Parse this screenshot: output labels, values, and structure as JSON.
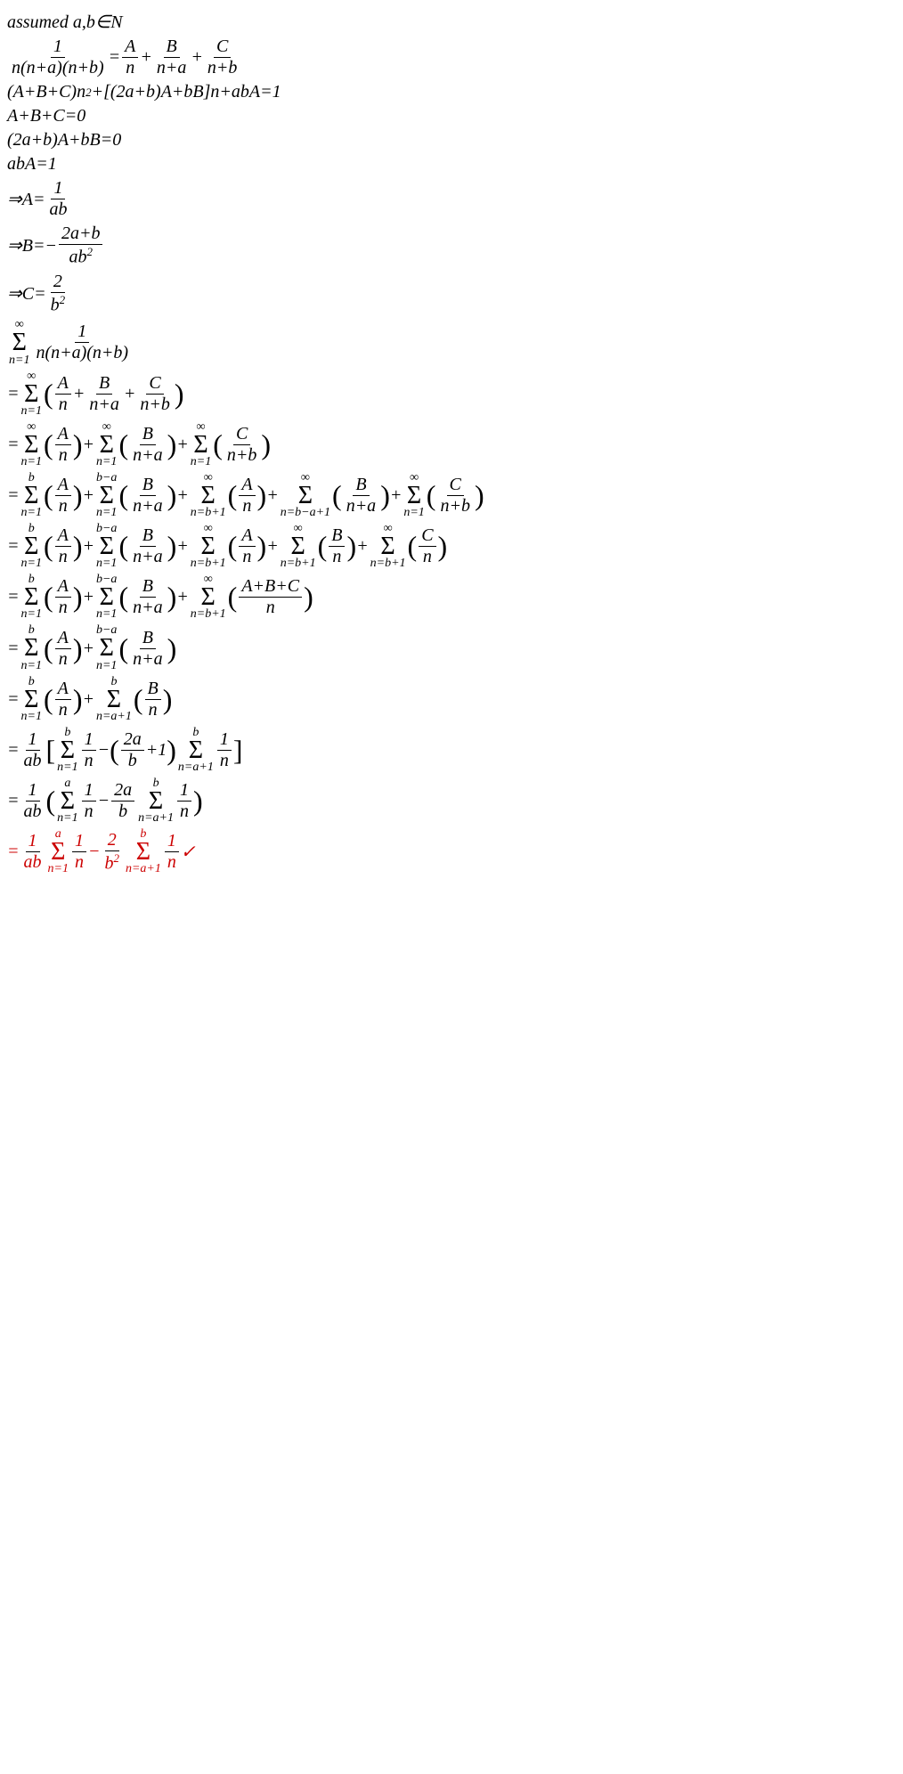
{
  "l1": "assumed a,b∈N",
  "f1n": "1",
  "f1d": "n(n+a)(n+b)",
  "eq": "=",
  "fAn": "A",
  "fAd": "n",
  "plus": "+",
  "fBn": "B",
  "fBd": "n+a",
  "fCn": "C",
  "fCd": "n+b",
  "l3a": "(A+B+C)n",
  "l3sup": "2",
  "l3b": "+[(2a+b)A+bB]n+abA=1",
  "l4": "A+B+C=0",
  "l5": "(2a+b)A+bB=0",
  "l6": "abA=1",
  "l7a": "⇒A=",
  "f7n": "1",
  "f7d": "ab",
  "l8a": "⇒B=−",
  "f8n": "2a+b",
  "f8d_a": "ab",
  "f8d_sup": "2",
  "l9a": "⇒C=",
  "f9n": "2",
  "f9d_a": "b",
  "f9d_sup": "2",
  "inf": "∞",
  "n1": "n=1",
  "f_main_n": "1",
  "f_main_d": "n(n+a)(n+b)",
  "l11_open": "(",
  "l11_close": ")",
  "Aon_n": "A",
  "Aon_d": "n",
  "Bona_n": "B",
  "Bona_d": "n+a",
  "Conb_n": "C",
  "Conb_d": "n+b",
  "b": "b",
  "bma": "b−a",
  "nb1": "n=b+1",
  "nba1": "n=b−a+1",
  "Bon_n": "B",
  "Bon_d": "n",
  "Con_n": "C",
  "Con_d": "n",
  "ABCn_n": "A+B+C",
  "ABCn_d": "n",
  "na1": "n=a+1",
  "oneab_n": "1",
  "oneab_d": "ab",
  "lbr": "[",
  "rbr": "]",
  "onen_n": "1",
  "onen_d": "n",
  "minus": "−",
  "twoab_n": "2a",
  "twoab_d": "b",
  "p1": "+1",
  "a": "a",
  "twob2_n": "2",
  "check": " ✓",
  "colors": {
    "red": "#cc0000",
    "black": "#000000",
    "bg": "#ffffff"
  },
  "fonts": {
    "base_size": 20,
    "sup_size": 13,
    "sigma_size": 28,
    "sumlim_size": 14
  }
}
